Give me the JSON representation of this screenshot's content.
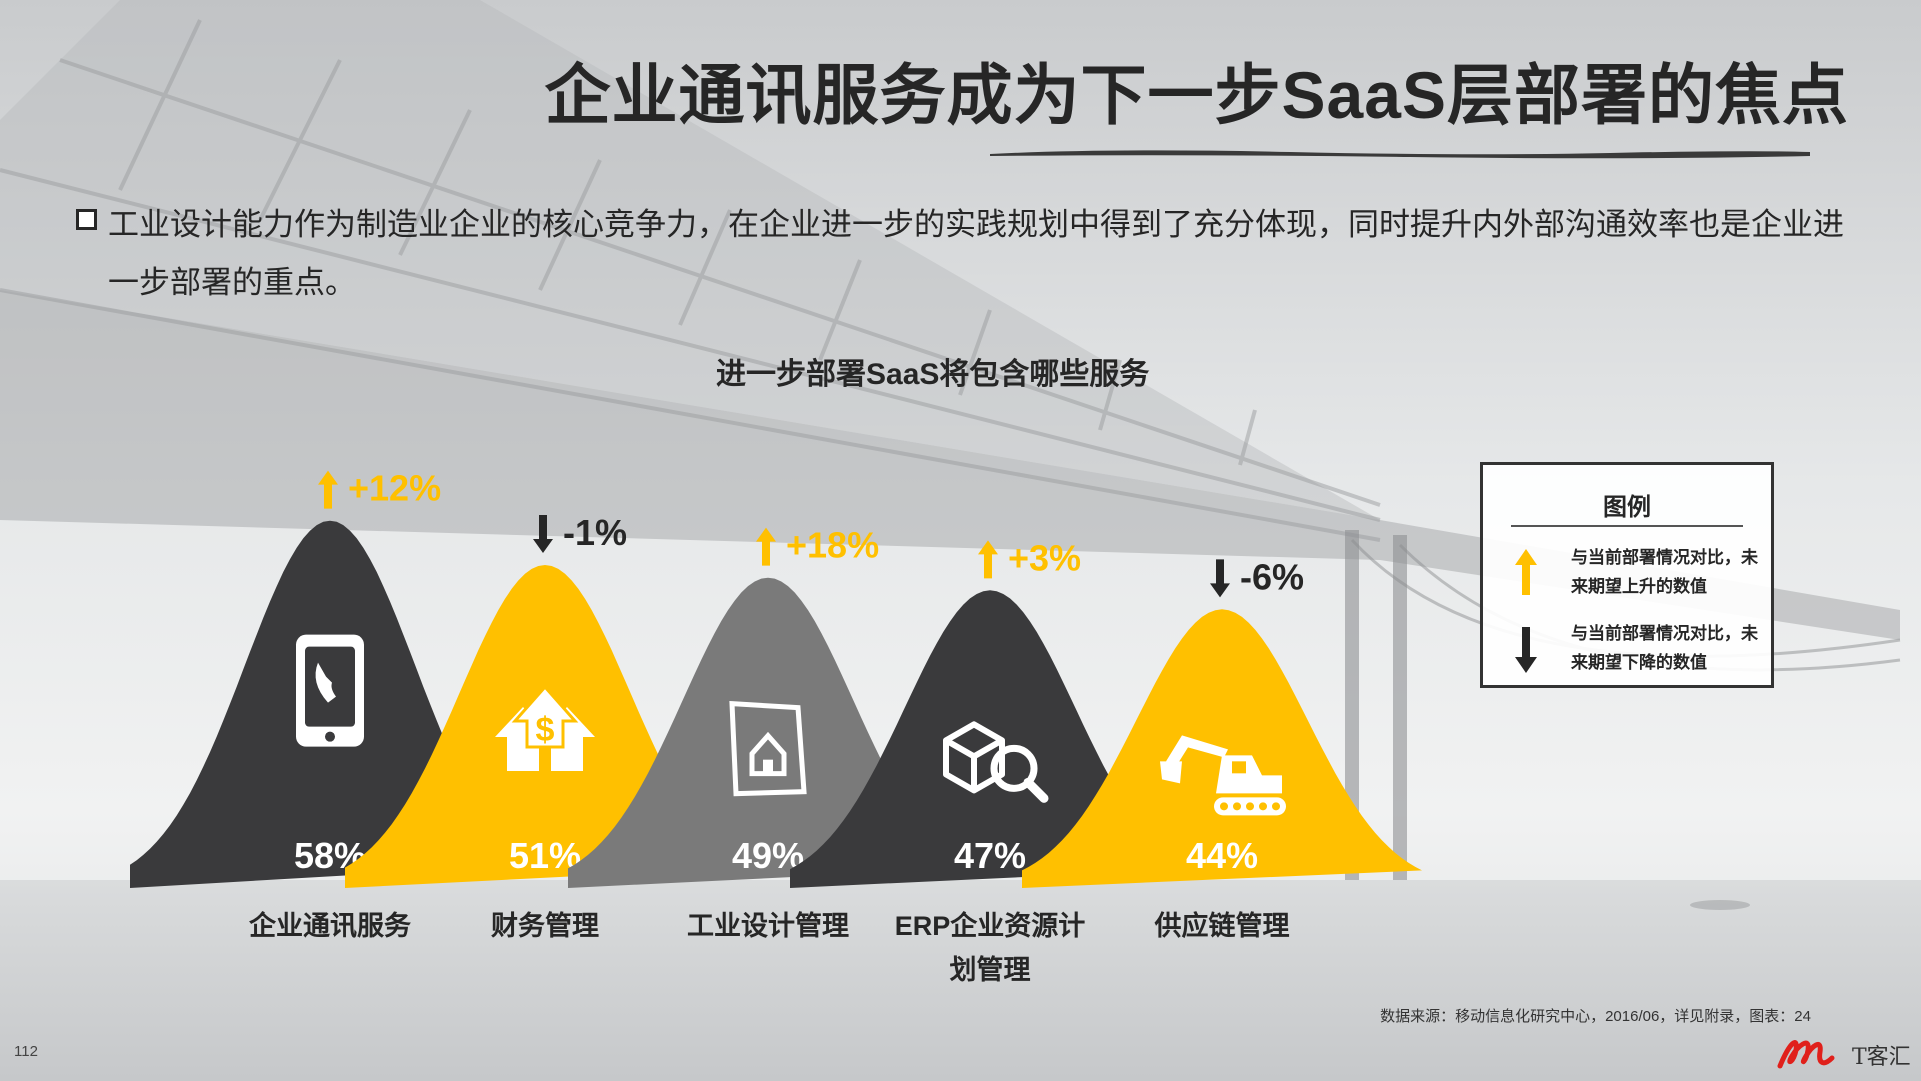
{
  "page_title": "企业通讯服务成为下一步SaaS层部署的焦点",
  "bullet_text": "工业设计能力作为制造业企业的核心竞争力，在企业进一步的实践规划中得到了充分体现，同时提升内外部沟通效率也是企业进一步部署的重点。",
  "legend": {
    "title": "图例",
    "up_text": "与当前部署情况对比，未来期望上升的数值",
    "down_text": "与当前部署情况对比，未来期望下降的数值"
  },
  "source": "数据来源：移动信息化研究中心，2016/06，详见附录，图表：24",
  "page_number": "112",
  "logo_text": "T客汇",
  "colors": {
    "dark": "#3a3a3c",
    "yellow": "#ffc000",
    "gray": "#7a7a7a",
    "text": "#262626"
  },
  "chart_data": {
    "type": "bar",
    "title": "进一步部署SaaS将包含哪些服务",
    "categories": [
      "企业通讯服务",
      "财务管理",
      "工业设计管理",
      "ERP企业资源计划管理",
      "供应链管理"
    ],
    "category_lines": [
      [
        "企业通讯服务"
      ],
      [
        "财务管理"
      ],
      [
        "工业设计管理"
      ],
      [
        "ERP企业资源计",
        "划管理"
      ],
      [
        "供应链管理"
      ]
    ],
    "values": [
      58,
      51,
      49,
      47,
      44
    ],
    "value_labels": [
      "58%",
      "51%",
      "49%",
      "47%",
      "44%"
    ],
    "changes": [
      "+12%",
      "-1%",
      "+18%",
      "+3%",
      "-6%"
    ],
    "change_direction": [
      "up",
      "down",
      "up",
      "up",
      "down"
    ],
    "icons": [
      "phone-icon",
      "money-house-icon",
      "blueprint-house-icon",
      "box-search-icon",
      "excavator-icon"
    ],
    "fill_colors": [
      "#3a3a3c",
      "#ffc000",
      "#7a7a7a",
      "#3a3a3c",
      "#ffc000"
    ],
    "ylim": [
      0,
      60
    ]
  }
}
